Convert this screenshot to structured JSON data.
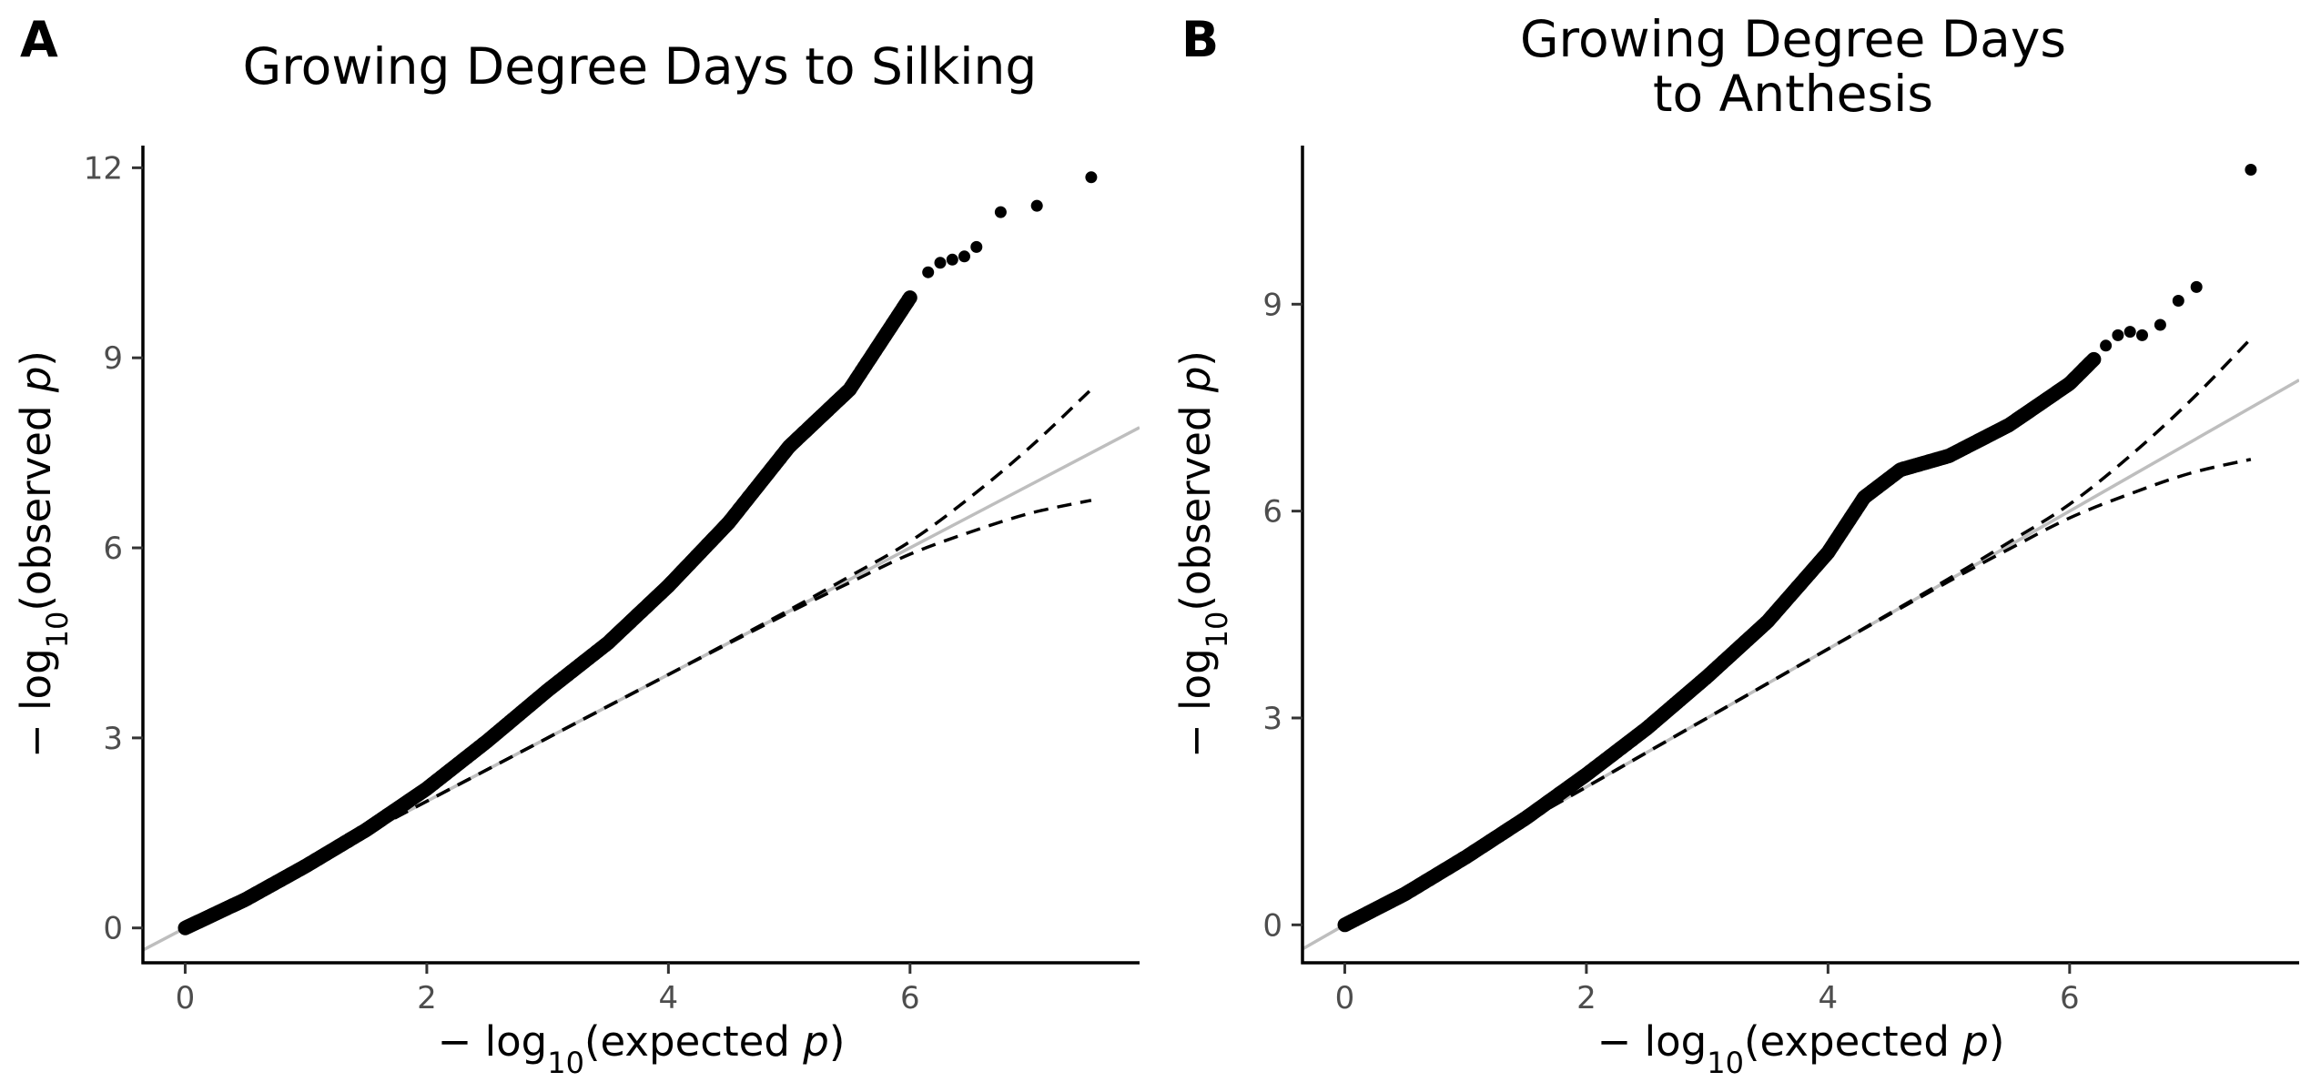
{
  "chart_data": [
    {
      "type": "scatter",
      "panel_label": "A",
      "title": "Growing Degree Days to Silking",
      "title_lines": [
        "Growing Degree Days to Silking"
      ],
      "xlabel": "−log10(expected p)",
      "ylabel": "−log10(observed p)",
      "xlabel_parts": {
        "minus": "−",
        "log": "log",
        "sub": "10",
        "pre": "(expected ",
        "var": "p",
        "post": ")"
      },
      "ylabel_parts": {
        "minus": "−",
        "log": "log",
        "sub": "10",
        "pre": "(observed ",
        "var": "p",
        "post": ")"
      },
      "xlim": [
        -0.35,
        7.9
      ],
      "ylim": [
        -0.55,
        12.35
      ],
      "x_ticks": [
        0,
        2,
        4,
        6
      ],
      "x_tick_labels": [
        "0",
        "2",
        "4",
        "6"
      ],
      "y_ticks": [
        0,
        3,
        6,
        9,
        12
      ],
      "y_tick_labels": [
        "0",
        "3",
        "6",
        "9",
        "12"
      ],
      "grid": false,
      "reference_line": {
        "slope": 1,
        "intercept": 0,
        "color": "#bebebe"
      },
      "confidence_band": {
        "color": "#000000",
        "upper": [
          [
            0,
            0
          ],
          [
            1,
            1
          ],
          [
            2,
            2
          ],
          [
            3,
            3
          ],
          [
            4,
            4
          ],
          [
            5,
            5.02
          ],
          [
            5.5,
            5.55
          ],
          [
            6,
            6.1
          ],
          [
            6.5,
            6.8
          ],
          [
            7,
            7.6
          ],
          [
            7.5,
            8.5
          ]
        ],
        "lower": [
          [
            0,
            0
          ],
          [
            1,
            1
          ],
          [
            2,
            2
          ],
          [
            3,
            3
          ],
          [
            4,
            4
          ],
          [
            5,
            4.98
          ],
          [
            5.5,
            5.45
          ],
          [
            6,
            5.9
          ],
          [
            6.5,
            6.25
          ],
          [
            7,
            6.55
          ],
          [
            7.5,
            6.75
          ]
        ]
      },
      "observed_curve": [
        [
          0,
          0
        ],
        [
          0.5,
          0.45
        ],
        [
          1,
          0.98
        ],
        [
          1.5,
          1.55
        ],
        [
          2,
          2.2
        ],
        [
          2.5,
          2.95
        ],
        [
          3,
          3.75
        ],
        [
          3.5,
          4.5
        ],
        [
          4,
          5.4
        ],
        [
          4.5,
          6.4
        ],
        [
          5,
          7.6
        ],
        [
          5.5,
          8.5
        ],
        [
          6,
          9.95
        ]
      ],
      "top_points": [
        [
          6.15,
          10.35
        ],
        [
          6.25,
          10.5
        ],
        [
          6.35,
          10.55
        ],
        [
          6.45,
          10.6
        ],
        [
          6.55,
          10.75
        ],
        [
          6.75,
          11.3
        ],
        [
          7.05,
          11.4
        ],
        [
          7.5,
          11.85
        ]
      ],
      "color": "#000000"
    },
    {
      "type": "scatter",
      "panel_label": "B",
      "title": "Growing Degree Days to Anthesis",
      "title_lines": [
        "Growing Degree Days",
        "to Anthesis"
      ],
      "xlabel": "−log10(expected p)",
      "ylabel": "−log10(observed p)",
      "xlabel_parts": {
        "minus": "−",
        "log": "log",
        "sub": "10",
        "pre": "(expected ",
        "var": "p",
        "post": ")"
      },
      "ylabel_parts": {
        "minus": "−",
        "log": "log",
        "sub": "10",
        "pre": "(observed ",
        "var": "p",
        "post": ")"
      },
      "xlim": [
        -0.35,
        7.9
      ],
      "ylim": [
        -0.55,
        11.3
      ],
      "x_ticks": [
        0,
        2,
        4,
        6
      ],
      "x_tick_labels": [
        "0",
        "2",
        "4",
        "6"
      ],
      "y_ticks": [
        0,
        3,
        6,
        9
      ],
      "y_tick_labels": [
        "0",
        "3",
        "6",
        "9"
      ],
      "grid": false,
      "reference_line": {
        "slope": 1,
        "intercept": 0,
        "color": "#bebebe"
      },
      "confidence_band": {
        "color": "#000000",
        "upper": [
          [
            0,
            0
          ],
          [
            1,
            1
          ],
          [
            2,
            2
          ],
          [
            3,
            3
          ],
          [
            4,
            4
          ],
          [
            5,
            5.02
          ],
          [
            5.5,
            5.55
          ],
          [
            6,
            6.1
          ],
          [
            6.5,
            6.8
          ],
          [
            7,
            7.6
          ],
          [
            7.5,
            8.5
          ]
        ],
        "lower": [
          [
            0,
            0
          ],
          [
            1,
            1
          ],
          [
            2,
            2
          ],
          [
            3,
            3
          ],
          [
            4,
            4
          ],
          [
            5,
            4.98
          ],
          [
            5.5,
            5.45
          ],
          [
            6,
            5.9
          ],
          [
            6.5,
            6.25
          ],
          [
            7,
            6.55
          ],
          [
            7.5,
            6.75
          ]
        ]
      },
      "observed_curve": [
        [
          0,
          0
        ],
        [
          0.5,
          0.45
        ],
        [
          1,
          0.98
        ],
        [
          1.5,
          1.55
        ],
        [
          2,
          2.18
        ],
        [
          2.5,
          2.85
        ],
        [
          3,
          3.6
        ],
        [
          3.5,
          4.4
        ],
        [
          4,
          5.4
        ],
        [
          4.3,
          6.2
        ],
        [
          4.6,
          6.6
        ],
        [
          5,
          6.8
        ],
        [
          5.5,
          7.25
        ],
        [
          6,
          7.85
        ],
        [
          6.2,
          8.2
        ]
      ],
      "top_points": [
        [
          6.3,
          8.4
        ],
        [
          6.4,
          8.55
        ],
        [
          6.5,
          8.6
        ],
        [
          6.6,
          8.55
        ],
        [
          6.75,
          8.7
        ],
        [
          6.9,
          9.05
        ],
        [
          7.05,
          9.25
        ],
        [
          7.5,
          10.95
        ]
      ],
      "color": "#000000"
    }
  ]
}
